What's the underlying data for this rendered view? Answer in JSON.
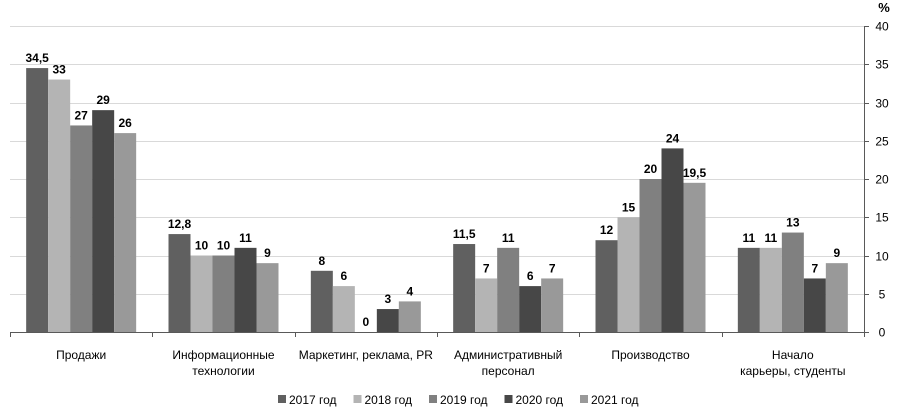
{
  "chart_data": {
    "type": "bar",
    "title": "",
    "xlabel": "",
    "ylabel": "%",
    "ylim": [
      0,
      40
    ],
    "yticks": [
      "0",
      "5",
      "10",
      "15",
      "20",
      "25",
      "30",
      "35",
      "40"
    ],
    "y_axis_side": "right",
    "grid": true,
    "legend_position": "bottom",
    "categories": [
      [
        "Продажи"
      ],
      [
        "Информационные",
        "технологии"
      ],
      [
        "Маркетинг, реклама, PR"
      ],
      [
        "Административный",
        "персонал"
      ],
      [
        "Производство"
      ],
      [
        "Начало",
        "карьеры, студенты"
      ]
    ],
    "series": [
      {
        "name": "2017 год",
        "color": "#606060",
        "values": [
          34.5,
          12.8,
          8,
          11.5,
          12,
          11
        ],
        "labels": [
          "34,5",
          "12,8",
          "8",
          "11,5",
          "12",
          "11"
        ]
      },
      {
        "name": "2018 год",
        "color": "#b4b4b4",
        "values": [
          33,
          10,
          6,
          7,
          15,
          11
        ],
        "labels": [
          "33",
          "10",
          "6",
          "7",
          "15",
          "11"
        ]
      },
      {
        "name": "2019 год",
        "color": "#808080",
        "values": [
          27,
          10,
          0,
          11,
          20,
          13
        ],
        "labels": [
          "27",
          "10",
          "0",
          "11",
          "20",
          "13"
        ]
      },
      {
        "name": "2020 год",
        "color": "#474747",
        "values": [
          29,
          11,
          3,
          6,
          24,
          7
        ],
        "labels": [
          "29",
          "11",
          "3",
          "6",
          "24",
          "7"
        ]
      },
      {
        "name": "2021 год",
        "color": "#999999",
        "values": [
          26,
          9,
          4,
          7,
          19.5,
          9
        ],
        "labels": [
          "26",
          "9",
          "4",
          "7",
          "19,5",
          "9"
        ]
      }
    ]
  }
}
